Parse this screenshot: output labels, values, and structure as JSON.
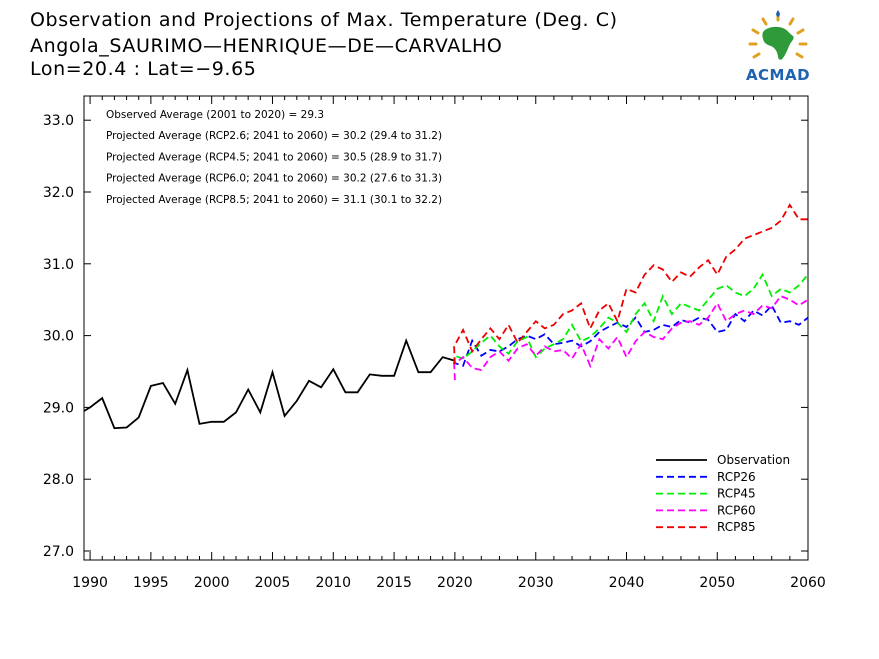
{
  "header": {
    "title": "Observation and Projections of Max. Temperature (Deg. C)",
    "station": "Angola_SAURIMO—HENRIQUE—DE—CARVALHO",
    "coords": "Lon=20.4 : Lat=−9.65"
  },
  "logo": {
    "text": "ACMAD"
  },
  "chart_data": {
    "type": "line",
    "title": "Observation and Projections of Max. Temperature (Deg. C)",
    "xlim": [
      1989.5,
      2060
    ],
    "ylim": [
      26.85,
      33.3
    ],
    "yticks": [
      27.0,
      28.0,
      29.0,
      30.0,
      31.0,
      32.0,
      33.0
    ],
    "ytick_labels": [
      "27.0",
      "28.0",
      "29.0",
      "30.0",
      "31.0",
      "32.0",
      "33.0"
    ],
    "xticks": [
      1990,
      1995,
      2000,
      2005,
      2010,
      2015,
      2020,
      2030,
      2040,
      2050,
      2060
    ],
    "xtick_labels": [
      "1990",
      "1995",
      "2000",
      "2005",
      "2010",
      "2015",
      "2020",
      "2030",
      "2040",
      "2050",
      "2060"
    ],
    "annotations": [
      "Observed Average (2001 to 2020) = 29.3",
      "Projected Average (RCP2.6; 2041 to 2060) = 30.2 (29.4 to 31.2)",
      "Projected Average (RCP4.5; 2041 to 2060) = 30.5 (28.9 to 31.7)",
      "Projected Average (RCP6.0; 2041 to 2060) = 30.2 (27.6 to 31.3)",
      "Projected Average (RCP8.5; 2041 to 2060) = 31.1 (30.1 to 32.2)"
    ],
    "legend_position": "bottom-right",
    "series": [
      {
        "name": "Observation",
        "color": "#000000",
        "dashed": false,
        "x": [
          1989.5,
          1990,
          1991,
          1992,
          1993,
          1994,
          1995,
          1996,
          1997,
          1998,
          1999,
          2000,
          2001,
          2002,
          2003,
          2004,
          2005,
          2006,
          2007,
          2008,
          2009,
          2010,
          2011,
          2012,
          2013,
          2014,
          2015,
          2016,
          2017,
          2018,
          2019,
          2020
        ],
        "y": [
          28.95,
          29.0,
          29.13,
          28.71,
          28.72,
          28.86,
          29.3,
          29.34,
          29.05,
          29.52,
          28.77,
          28.8,
          28.8,
          28.93,
          29.25,
          28.93,
          29.49,
          28.88,
          29.09,
          29.37,
          29.28,
          29.53,
          29.21,
          29.21,
          29.46,
          29.44,
          29.44,
          29.93,
          29.49,
          29.49,
          29.7,
          29.65
        ]
      },
      {
        "name": "RCP26",
        "color": "#0000ff",
        "dashed": true,
        "x": [
          2020,
          2021,
          2022,
          2023,
          2024,
          2025,
          2026,
          2027,
          2028,
          2029,
          2030,
          2031,
          2032,
          2033,
          2034,
          2035,
          2036,
          2037,
          2038,
          2039,
          2040,
          2041,
          2042,
          2043,
          2044,
          2045,
          2046,
          2047,
          2048,
          2049,
          2050,
          2051,
          2052,
          2053,
          2054,
          2055,
          2056,
          2057,
          2058,
          2059,
          2060
        ],
        "y": [
          29.65,
          29.62,
          29.58,
          29.93,
          29.72,
          29.8,
          29.78,
          29.85,
          29.95,
          30.0,
          29.95,
          30.02,
          29.88,
          29.9,
          29.93,
          29.85,
          29.92,
          30.05,
          30.12,
          30.18,
          30.12,
          30.25,
          30.05,
          30.08,
          30.15,
          30.12,
          30.22,
          30.18,
          30.25,
          30.22,
          30.05,
          30.08,
          30.3,
          30.2,
          30.35,
          30.28,
          30.42,
          30.18,
          30.2,
          30.15,
          30.25
        ]
      },
      {
        "name": "RCP45",
        "color": "#00ee00",
        "dashed": true,
        "x": [
          2020,
          2021,
          2022,
          2023,
          2024,
          2025,
          2026,
          2027,
          2028,
          2029,
          2030,
          2031,
          2032,
          2033,
          2034,
          2035,
          2036,
          2037,
          2038,
          2039,
          2040,
          2041,
          2042,
          2043,
          2044,
          2045,
          2046,
          2047,
          2048,
          2049,
          2050,
          2051,
          2052,
          2053,
          2054,
          2055,
          2056,
          2057,
          2058,
          2059,
          2060
        ],
        "y": [
          29.6,
          29.72,
          29.68,
          29.78,
          29.9,
          30.0,
          29.85,
          29.75,
          29.92,
          29.98,
          29.7,
          29.82,
          29.88,
          29.95,
          30.15,
          29.92,
          29.98,
          30.1,
          30.25,
          30.18,
          30.05,
          30.3,
          30.45,
          30.2,
          30.55,
          30.3,
          30.45,
          30.4,
          30.35,
          30.5,
          30.65,
          30.7,
          30.6,
          30.55,
          30.65,
          30.85,
          30.55,
          30.65,
          30.6,
          30.7,
          30.85
        ]
      },
      {
        "name": "RCP60",
        "color": "#ff00ff",
        "dashed": true,
        "x": [
          2020,
          2021,
          2022,
          2023,
          2024,
          2025,
          2026,
          2027,
          2028,
          2029,
          2030,
          2031,
          2032,
          2033,
          2034,
          2035,
          2036,
          2037,
          2038,
          2039,
          2040,
          2041,
          2042,
          2043,
          2044,
          2045,
          2046,
          2047,
          2048,
          2049,
          2050,
          2051,
          2052,
          2053,
          2054,
          2055,
          2056,
          2057,
          2058,
          2059,
          2060
        ],
        "y": [
          29.38,
          29.6,
          29.7,
          29.55,
          29.52,
          29.7,
          29.78,
          29.65,
          29.82,
          29.88,
          29.72,
          29.85,
          29.78,
          29.8,
          29.68,
          29.88,
          29.58,
          29.95,
          29.82,
          29.98,
          29.7,
          29.92,
          30.05,
          29.98,
          29.95,
          30.1,
          30.18,
          30.2,
          30.15,
          30.25,
          30.45,
          30.2,
          30.3,
          30.35,
          30.3,
          30.42,
          30.38,
          30.55,
          30.5,
          30.42,
          30.5
        ]
      },
      {
        "name": "RCP85",
        "color": "#ee0000",
        "dashed": true,
        "x": [
          2020,
          2021,
          2022,
          2023,
          2024,
          2025,
          2026,
          2027,
          2028,
          2029,
          2030,
          2031,
          2032,
          2033,
          2034,
          2035,
          2036,
          2037,
          2038,
          2039,
          2040,
          2041,
          2042,
          2043,
          2044,
          2045,
          2046,
          2047,
          2048,
          2049,
          2050,
          2051,
          2052,
          2053,
          2054,
          2055,
          2056,
          2057,
          2058,
          2059,
          2060
        ],
        "y": [
          29.6,
          29.85,
          30.08,
          29.78,
          29.95,
          30.1,
          29.95,
          30.15,
          29.9,
          30.05,
          30.2,
          30.1,
          30.15,
          30.3,
          30.35,
          30.45,
          30.1,
          30.35,
          30.45,
          30.2,
          30.65,
          30.6,
          30.85,
          30.98,
          30.92,
          30.75,
          30.88,
          30.82,
          30.95,
          31.05,
          30.85,
          31.1,
          31.2,
          31.35,
          31.4,
          31.45,
          31.5,
          31.6,
          31.82,
          31.62,
          31.62
        ]
      }
    ]
  }
}
